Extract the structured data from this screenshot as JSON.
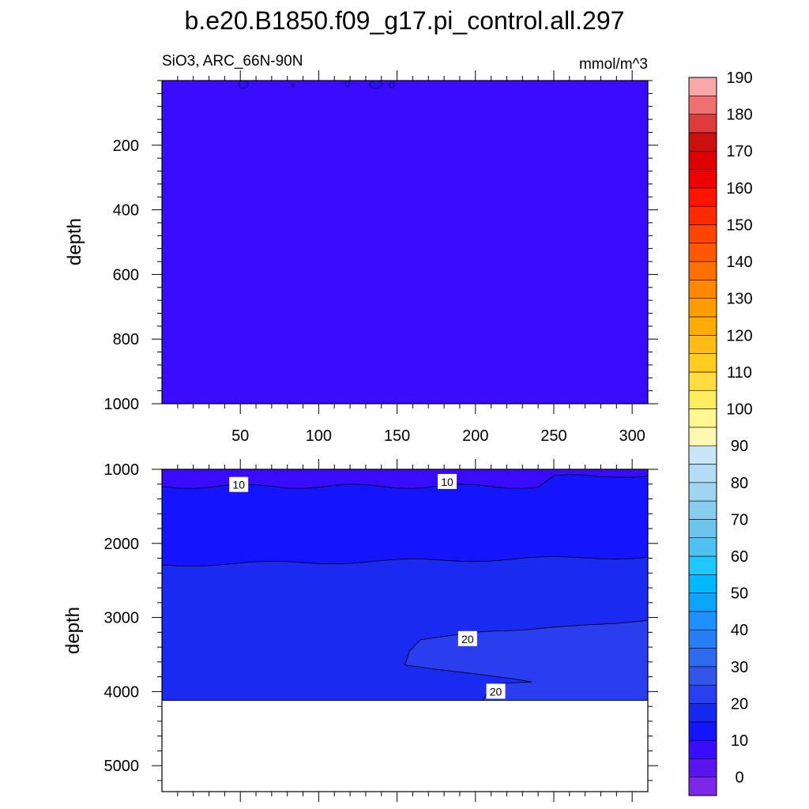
{
  "figure": {
    "title": "b.e20.B1850.f09_g17.pi_control.all.297",
    "left_label": "SiO3, ARC_66N-90N",
    "right_label": "mmol/m^3"
  },
  "colors": {
    "fill_0_10": "#3a0cff",
    "fill_upper_shallow": "#2a12f0",
    "fill_10_15": "#1414ff",
    "fill_15_20": "#1a2af0",
    "fill_20_25": "#2a3ef0",
    "frame": "#000000",
    "no_data": "#ffffff"
  },
  "colorbar": {
    "levels": [
      0,
      5,
      10,
      15,
      20,
      25,
      30,
      35,
      40,
      45,
      50,
      55,
      60,
      65,
      70,
      75,
      80,
      85,
      90,
      95,
      100,
      105,
      110,
      115,
      120,
      125,
      130,
      135,
      140,
      145,
      150,
      155,
      160,
      165,
      170,
      175,
      180,
      185,
      190
    ],
    "labels": [
      "0",
      "10",
      "20",
      "30",
      "40",
      "50",
      "60",
      "70",
      "80",
      "90",
      "100",
      "110",
      "120",
      "130",
      "140",
      "150",
      "160",
      "170",
      "180",
      "190"
    ],
    "colors": [
      "#7d28e8",
      "#5a14f0",
      "#3a0cff",
      "#1414ff",
      "#1428f0",
      "#2a40f0",
      "#3456e8",
      "#2f6af0",
      "#2a7ef4",
      "#1e90ff",
      "#0ca4ff",
      "#00b8ff",
      "#1ec8ff",
      "#50c0f0",
      "#6ec4ec",
      "#88ccee",
      "#a0d4f0",
      "#b4dcf4",
      "#c8e6f8",
      "#fff8b0",
      "#fff890",
      "#ffec60",
      "#ffdc40",
      "#ffcc20",
      "#ffbc14",
      "#ffac0a",
      "#ff9c00",
      "#ff8800",
      "#ff7000",
      "#ff5800",
      "#ff4400",
      "#ff2a00",
      "#ff1400",
      "#ee0000",
      "#dc0000",
      "#cc1010",
      "#dc3c3c",
      "#ee7070",
      "#f8a8a8"
    ]
  },
  "chart_data": [
    {
      "type": "contour",
      "panel": "upper",
      "variable": "SiO3",
      "units": "mmol/m^3",
      "xlabel": "",
      "ylabel": "depth",
      "xlim": [
        0,
        310
      ],
      "ylim": [
        1000,
        0
      ],
      "x_ticks": [
        50,
        100,
        150,
        200,
        250,
        300
      ],
      "y_ticks": [
        200,
        400,
        600,
        800,
        1000
      ],
      "regions": [
        {
          "range": [
            5,
            10
          ],
          "x_range": [
            0,
            310
          ],
          "depth_range": [
            0,
            1000
          ]
        }
      ]
    },
    {
      "type": "contour",
      "panel": "lower",
      "variable": "SiO3",
      "units": "mmol/m^3",
      "xlabel": "",
      "ylabel": "depth",
      "xlim": [
        0,
        310
      ],
      "ylim": [
        5350,
        1000
      ],
      "x_ticks": [
        50,
        100,
        150,
        200,
        250,
        300
      ],
      "y_ticks": [
        1000,
        2000,
        3000,
        4000,
        5000
      ],
      "regions": [
        {
          "range": [
            5,
            10
          ],
          "depth_range": [
            1000,
            1250
          ]
        },
        {
          "range": [
            10,
            15
          ],
          "depth_range": [
            1250,
            2300
          ]
        },
        {
          "range": [
            15,
            20
          ],
          "depth_range": [
            2300,
            4120
          ]
        },
        {
          "range": [
            20,
            25
          ],
          "depth_range": [
            3000,
            4000
          ],
          "x_range": [
            155,
            310
          ]
        }
      ],
      "no_data_below_depth": 4120,
      "contour_labels": [
        {
          "text": "10",
          "x": 49,
          "depth": 1210
        },
        {
          "text": "10",
          "x": 182,
          "depth": 1170
        },
        {
          "text": "20",
          "x": 195,
          "depth": 3290
        },
        {
          "text": "20",
          "x": 213,
          "depth": 4000
        }
      ]
    }
  ]
}
